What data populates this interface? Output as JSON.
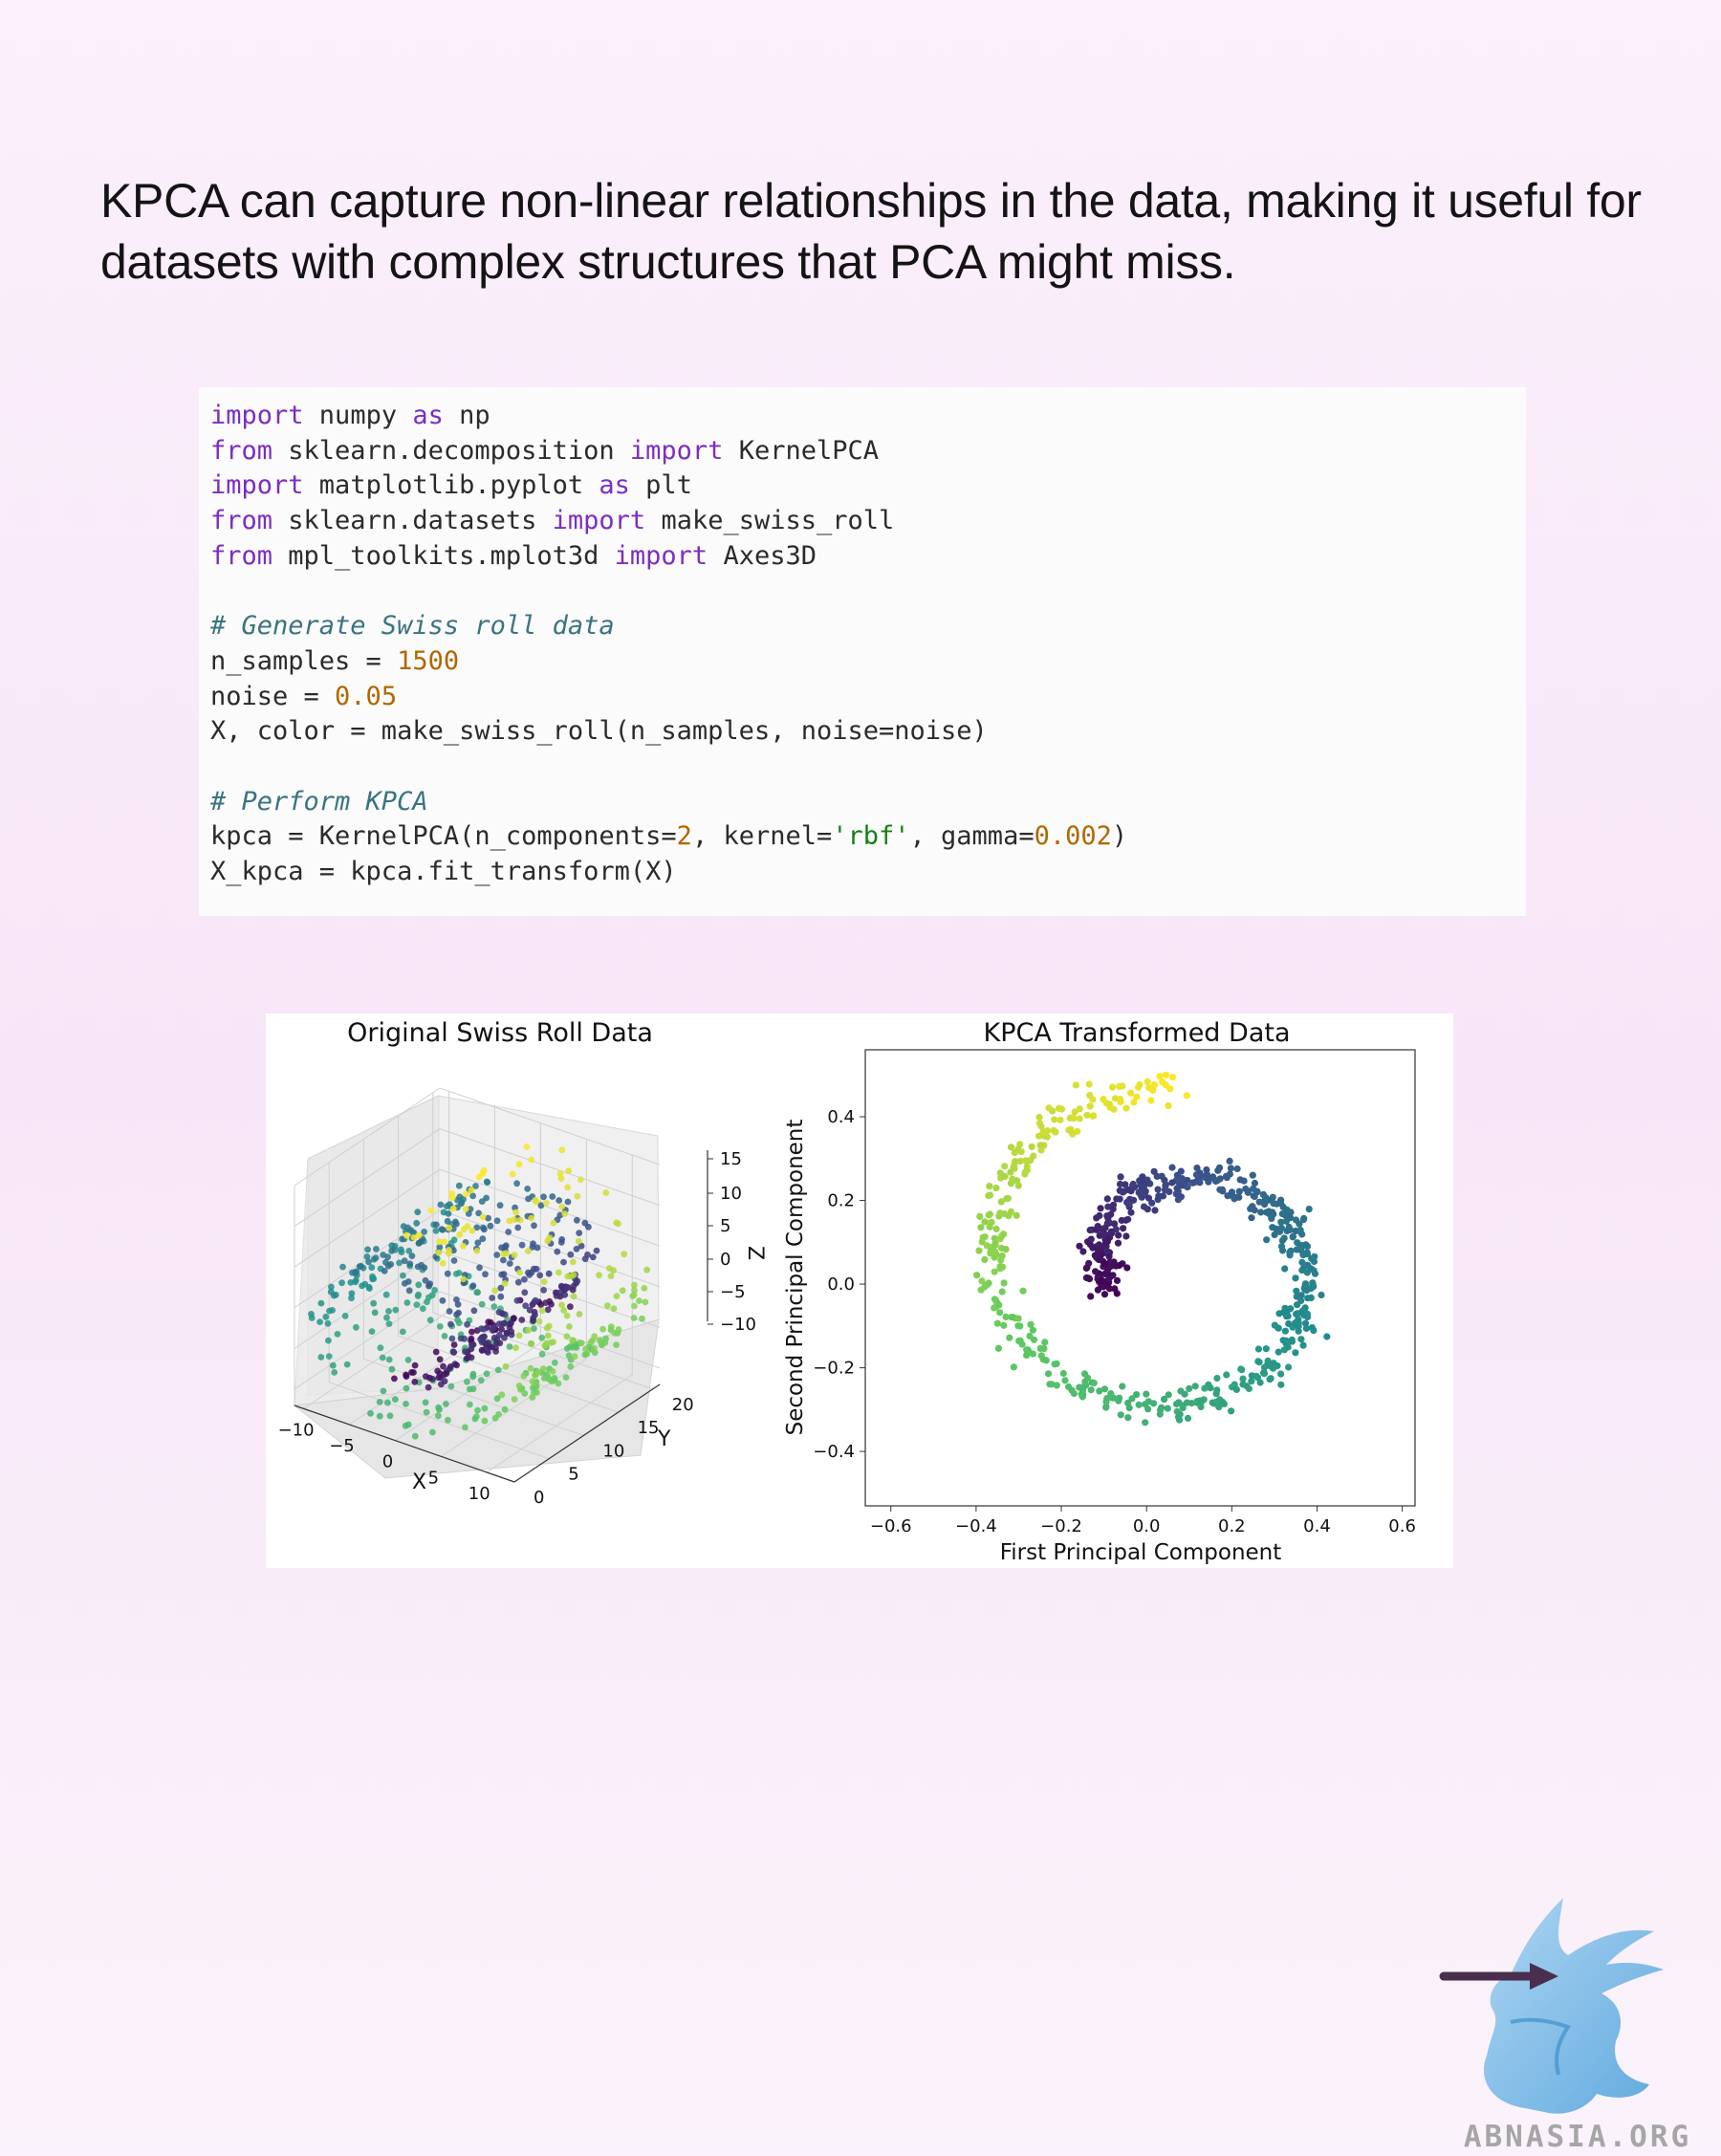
{
  "headline": "KPCA can capture non-linear relationships in the data, making it useful for datasets with complex structures that PCA might miss.",
  "code_lines": [
    [
      {
        "t": "import",
        "c": "kw"
      },
      {
        "t": " numpy "
      },
      {
        "t": "as",
        "c": "kw"
      },
      {
        "t": " np"
      }
    ],
    [
      {
        "t": "from",
        "c": "kw"
      },
      {
        "t": " sklearn.decomposition "
      },
      {
        "t": "import",
        "c": "kw"
      },
      {
        "t": " KernelPCA"
      }
    ],
    [
      {
        "t": "import",
        "c": "kw"
      },
      {
        "t": " matplotlib.pyplot "
      },
      {
        "t": "as",
        "c": "kw"
      },
      {
        "t": " plt"
      }
    ],
    [
      {
        "t": "from",
        "c": "kw"
      },
      {
        "t": " sklearn.datasets "
      },
      {
        "t": "import",
        "c": "kw"
      },
      {
        "t": " make_swiss_roll"
      }
    ],
    [
      {
        "t": "from",
        "c": "kw"
      },
      {
        "t": " mpl_toolkits.mplot3d "
      },
      {
        "t": "import",
        "c": "kw"
      },
      {
        "t": " Axes3D"
      }
    ],
    [],
    [
      {
        "t": "# Generate Swiss roll data",
        "c": "cmt"
      }
    ],
    [
      {
        "t": "n_samples = "
      },
      {
        "t": "1500",
        "c": "num"
      }
    ],
    [
      {
        "t": "noise = "
      },
      {
        "t": "0.05",
        "c": "num"
      }
    ],
    [
      {
        "t": "X, color = make_swiss_roll(n_samples, noise=noise)"
      }
    ],
    [],
    [
      {
        "t": "# Perform KPCA",
        "c": "cmt"
      }
    ],
    [
      {
        "t": "kpca = KernelPCA(n_components="
      },
      {
        "t": "2",
        "c": "num"
      },
      {
        "t": ", kernel="
      },
      {
        "t": "'rbf'",
        "c": "str"
      },
      {
        "t": ", gamma="
      },
      {
        "t": "0.002",
        "c": "num"
      },
      {
        "t": ")"
      }
    ],
    [
      {
        "t": "X_kpca = kpca.fit_transform(X)"
      }
    ]
  ],
  "colors": {
    "keyword": "#7c2ec2",
    "number": "#b26700",
    "string": "#158015",
    "comment": "#3a7480",
    "viridis": [
      "#440154",
      "#3b528b",
      "#21918c",
      "#5ec962",
      "#fde725"
    ]
  },
  "chart_data": [
    {
      "type": "scatter",
      "title": "Original Swiss Roll Data",
      "projection": "3d",
      "xlabel": "X",
      "ylabel": "Y",
      "zlabel": "Z",
      "xticks": [
        "−10",
        "−5",
        "0",
        "5",
        "10"
      ],
      "yticks": [
        "0",
        "5",
        "10",
        "15",
        "20"
      ],
      "zticks": [
        "15",
        "10",
        "5",
        "0",
        "−5",
        "−10"
      ],
      "xlim": [
        -11,
        13
      ],
      "ylim": [
        0,
        21
      ],
      "zlim": [
        -12,
        15
      ],
      "n_points": 1500,
      "colormap": "viridis",
      "grid": true
    },
    {
      "type": "scatter",
      "title": "KPCA Transformed Data",
      "xlabel": "First Principal Component",
      "ylabel": "Second Principal Component",
      "xticks": [
        "−0.6",
        "−0.4",
        "−0.2",
        "0.0",
        "0.2",
        "0.4",
        "0.6"
      ],
      "yticks": [
        "0.4",
        "0.2",
        "0.0",
        "−0.2",
        "−0.4"
      ],
      "xlim": [
        -0.66,
        0.63
      ],
      "ylim": [
        -0.53,
        0.56
      ],
      "n_points": 1500,
      "colormap": "viridis",
      "spiral_center": [
        0.07,
        0.04
      ],
      "grid": false
    }
  ],
  "watermark": "ABNASIA.ORG"
}
